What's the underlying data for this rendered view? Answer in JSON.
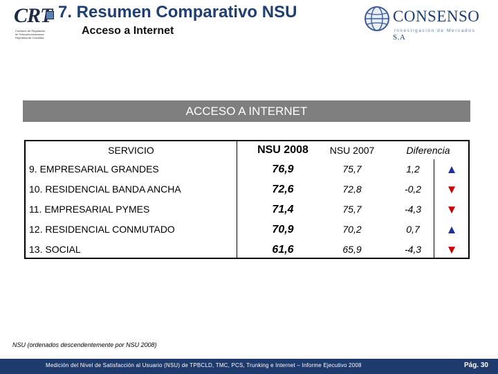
{
  "header": {
    "title": "7. Resumen Comparativo NSU",
    "subtitle": "Acceso a Internet",
    "crt_logo": {
      "mark": "CRT",
      "small_text": "Comisión de Regulación\nde Telecomunicaciones\nRepública de Colombia"
    },
    "consenso_logo": {
      "name": "CONSENSO",
      "suffix": "S.A",
      "tagline": "Investigación de Mercados"
    }
  },
  "section_title": "ACCESO A INTERNET",
  "table": {
    "headers": {
      "service": "SERVICIO",
      "nsu2008": "NSU 2008",
      "nsu2007": "NSU 2007",
      "diff": "Diferencia"
    },
    "rows": [
      {
        "service": "9. EMPRESARIAL GRANDES",
        "nsu2008": "76,9",
        "nsu2007": "75,7",
        "diff": "1,2",
        "trend": "up",
        "arrow": "▲"
      },
      {
        "service": "10. RESIDENCIAL BANDA ANCHA",
        "nsu2008": "72,6",
        "nsu2007": "72,8",
        "diff": "-0,2",
        "trend": "down",
        "arrow": "▼"
      },
      {
        "service": "11. EMPRESARIAL PYMES",
        "nsu2008": "71,4",
        "nsu2007": "75,7",
        "diff": "-4,3",
        "trend": "down",
        "arrow": "▼"
      },
      {
        "service": "12. RESIDENCIAL CONMUTADO",
        "nsu2008": "70,9",
        "nsu2007": "70,2",
        "diff": "0,7",
        "trend": "up",
        "arrow": "▲"
      },
      {
        "service": "13. SOCIAL",
        "nsu2008": "61,6",
        "nsu2007": "65,9",
        "diff": "-4,3",
        "trend": "down",
        "arrow": "▼"
      }
    ]
  },
  "footnote": "NSU (ordenados descendentemente por NSU 2008)",
  "footer": {
    "text": "Medición del Nivel de Satisfacción al Usuario (NSU) de TPBCLD, TMC, PCS, Trunking e Internet – Informe Ejecutivo 2008",
    "page": "Pág. 30"
  },
  "colors": {
    "title": "#1f3f74",
    "section_bar": "#7f7f7f",
    "footer_bar": "#1f3a6d",
    "up": "#1f2f9e",
    "down": "#d00000"
  }
}
